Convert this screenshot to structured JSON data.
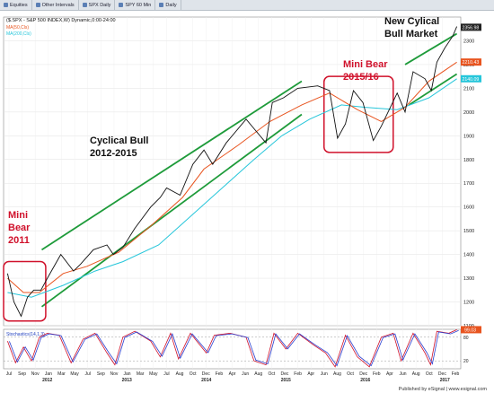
{
  "tabs": [
    {
      "label": "Equities",
      "icon": "grid-icon"
    },
    {
      "label": "Other Intervals",
      "icon": "grid-icon"
    },
    {
      "label": "SPX Daily",
      "icon": "chart-icon"
    },
    {
      "label": "SPY 60 Min",
      "icon": "chart-icon"
    },
    {
      "label": "Daily",
      "icon": "chart-icon"
    }
  ],
  "footer": "Published by eSignal | www.esignal.com",
  "chart_data": {
    "type": "line",
    "header": "($.SPX - S&P 500 INDEX,W) Dynamic,0:00-24:00",
    "legend": [
      "MA(50,Cls)",
      "MA(200,Cls)"
    ],
    "price_labels": [
      "2356.98",
      "2210.43",
      "2140.09"
    ],
    "ylim": [
      1100,
      2400
    ],
    "yticks": [
      2300,
      2200,
      2100,
      2000,
      1900,
      1800,
      1700,
      1600,
      1500,
      1400,
      1300,
      1200,
      1100
    ],
    "x_months": [
      "Jul",
      "Sep",
      "Nov",
      "Jan",
      "Mar",
      "May",
      "Jul",
      "Sep",
      "Nov",
      "Jan",
      "Mar",
      "May",
      "Jul",
      "Aug",
      "Oct",
      "Dec",
      "Feb",
      "Apr",
      "Jun",
      "Aug",
      "Oct",
      "Dec",
      "Feb",
      "Apr",
      "Jun",
      "Aug",
      "Oct",
      "Dec",
      "Feb",
      "Apr",
      "Jun",
      "Aug",
      "Oct",
      "Dec",
      "Feb"
    ],
    "x_years": [
      "2012",
      "2013",
      "2014",
      "2015",
      "2016",
      "2017"
    ],
    "annotations": {
      "mini_bear_2011": [
        "Mini",
        "Bear",
        "2011"
      ],
      "cyclical_bull": [
        "Cyclical Bull",
        "2012-2015"
      ],
      "mini_bear_2015": [
        "Mini Bear",
        "2015/16"
      ],
      "new_bull": [
        "New Cylical",
        "Bull Market"
      ]
    },
    "price_series": [
      [
        2011.5,
        1320
      ],
      [
        2011.58,
        1200
      ],
      [
        2011.67,
        1140
      ],
      [
        2011.75,
        1220
      ],
      [
        2011.83,
        1250
      ],
      [
        2011.92,
        1250
      ],
      [
        2012.0,
        1300
      ],
      [
        2012.17,
        1400
      ],
      [
        2012.33,
        1330
      ],
      [
        2012.42,
        1360
      ],
      [
        2012.58,
        1420
      ],
      [
        2012.75,
        1440
      ],
      [
        2012.83,
        1400
      ],
      [
        2012.95,
        1430
      ],
      [
        2013.1,
        1510
      ],
      [
        2013.3,
        1600
      ],
      [
        2013.42,
        1640
      ],
      [
        2013.5,
        1680
      ],
      [
        2013.67,
        1650
      ],
      [
        2013.83,
        1780
      ],
      [
        2013.97,
        1840
      ],
      [
        2014.08,
        1780
      ],
      [
        2014.25,
        1870
      ],
      [
        2014.5,
        1970
      ],
      [
        2014.6,
        1930
      ],
      [
        2014.75,
        1870
      ],
      [
        2014.83,
        2040
      ],
      [
        2014.97,
        2060
      ],
      [
        2015.15,
        2100
      ],
      [
        2015.4,
        2110
      ],
      [
        2015.55,
        2090
      ],
      [
        2015.65,
        1890
      ],
      [
        2015.75,
        1950
      ],
      [
        2015.85,
        2090
      ],
      [
        2015.97,
        2040
      ],
      [
        2016.1,
        1880
      ],
      [
        2016.2,
        1940
      ],
      [
        2016.4,
        2080
      ],
      [
        2016.5,
        2000
      ],
      [
        2016.6,
        2170
      ],
      [
        2016.75,
        2140
      ],
      [
        2016.83,
        2090
      ],
      [
        2016.9,
        2210
      ],
      [
        2017.0,
        2270
      ],
      [
        2017.1,
        2320
      ],
      [
        2017.15,
        2360
      ]
    ],
    "ma50_series": [
      [
        2011.5,
        1300
      ],
      [
        2011.7,
        1240
      ],
      [
        2011.9,
        1240
      ],
      [
        2012.2,
        1320
      ],
      [
        2012.5,
        1350
      ],
      [
        2012.9,
        1410
      ],
      [
        2013.3,
        1520
      ],
      [
        2013.7,
        1640
      ],
      [
        2013.97,
        1760
      ],
      [
        2014.4,
        1860
      ],
      [
        2014.8,
        1960
      ],
      [
        2015.2,
        2030
      ],
      [
        2015.55,
        2080
      ],
      [
        2015.9,
        2010
      ],
      [
        2016.2,
        1960
      ],
      [
        2016.5,
        2020
      ],
      [
        2016.8,
        2130
      ],
      [
        2017.15,
        2210
      ]
    ],
    "ma200_series": [
      [
        2011.5,
        1240
      ],
      [
        2011.8,
        1220
      ],
      [
        2012.2,
        1270
      ],
      [
        2012.6,
        1330
      ],
      [
        2012.95,
        1370
      ],
      [
        2013.4,
        1440
      ],
      [
        2013.8,
        1560
      ],
      [
        2014.2,
        1680
      ],
      [
        2014.6,
        1800
      ],
      [
        2014.95,
        1900
      ],
      [
        2015.3,
        1970
      ],
      [
        2015.7,
        2030
      ],
      [
        2016.0,
        2020
      ],
      [
        2016.4,
        2010
      ],
      [
        2016.8,
        2060
      ],
      [
        2017.15,
        2140
      ]
    ],
    "channel_lines": [
      {
        "from": [
          2011.93,
          1420
        ],
        "to": [
          2015.2,
          2130
        ]
      },
      {
        "from": [
          2011.93,
          1180
        ],
        "to": [
          2015.2,
          1990
        ]
      },
      {
        "from": [
          2016.5,
          2200
        ],
        "to": [
          2017.15,
          2330
        ]
      },
      {
        "from": [
          2016.55,
          2030
        ],
        "to": [
          2017.15,
          2160
        ]
      }
    ],
    "highlight_boxes": [
      {
        "x": [
          2011.45,
          2011.98
        ],
        "y": [
          1120,
          1370
        ]
      },
      {
        "x": [
          2015.48,
          2016.35
        ],
        "y": [
          1830,
          2150
        ]
      }
    ],
    "stoch_label": "Stochastics(14,1,3)",
    "stoch_value": "99.03",
    "stoch_ticks": [
      80,
      20
    ],
    "stoch_series": [
      [
        2011.5,
        70
      ],
      [
        2011.6,
        15
      ],
      [
        2011.7,
        55
      ],
      [
        2011.8,
        20
      ],
      [
        2011.9,
        80
      ],
      [
        2012.0,
        90
      ],
      [
        2012.15,
        85
      ],
      [
        2012.3,
        15
      ],
      [
        2012.45,
        75
      ],
      [
        2012.6,
        90
      ],
      [
        2012.75,
        40
      ],
      [
        2012.85,
        10
      ],
      [
        2012.95,
        80
      ],
      [
        2013.1,
        95
      ],
      [
        2013.3,
        70
      ],
      [
        2013.42,
        30
      ],
      [
        2013.55,
        90
      ],
      [
        2013.65,
        25
      ],
      [
        2013.8,
        90
      ],
      [
        2014.0,
        40
      ],
      [
        2014.1,
        85
      ],
      [
        2014.3,
        90
      ],
      [
        2014.5,
        80
      ],
      [
        2014.6,
        20
      ],
      [
        2014.75,
        10
      ],
      [
        2014.85,
        90
      ],
      [
        2015.0,
        50
      ],
      [
        2015.15,
        90
      ],
      [
        2015.35,
        60
      ],
      [
        2015.5,
        40
      ],
      [
        2015.62,
        5
      ],
      [
        2015.75,
        85
      ],
      [
        2015.9,
        30
      ],
      [
        2016.05,
        5
      ],
      [
        2016.2,
        80
      ],
      [
        2016.35,
        90
      ],
      [
        2016.45,
        20
      ],
      [
        2016.6,
        90
      ],
      [
        2016.75,
        40
      ],
      [
        2016.82,
        10
      ],
      [
        2016.9,
        95
      ],
      [
        2017.05,
        90
      ],
      [
        2017.15,
        99
      ]
    ]
  }
}
